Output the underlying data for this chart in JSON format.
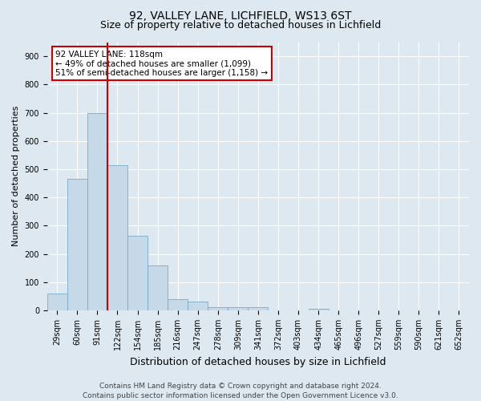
{
  "title1": "92, VALLEY LANE, LICHFIELD, WS13 6ST",
  "title2": "Size of property relative to detached houses in Lichfield",
  "xlabel": "Distribution of detached houses by size in Lichfield",
  "ylabel": "Number of detached properties",
  "categories": [
    "29sqm",
    "60sqm",
    "91sqm",
    "122sqm",
    "154sqm",
    "185sqm",
    "216sqm",
    "247sqm",
    "278sqm",
    "309sqm",
    "341sqm",
    "372sqm",
    "403sqm",
    "434sqm",
    "465sqm",
    "496sqm",
    "527sqm",
    "559sqm",
    "590sqm",
    "621sqm",
    "652sqm"
  ],
  "values": [
    60,
    465,
    700,
    515,
    265,
    160,
    40,
    30,
    12,
    10,
    10,
    0,
    0,
    5,
    0,
    0,
    0,
    0,
    0,
    0,
    0
  ],
  "bar_color": "#c5d9e8",
  "bar_edge_color": "#7aaac8",
  "vline_color": "#cc0000",
  "vline_x_index": 3,
  "annotation_text": "92 VALLEY LANE: 118sqm\n← 49% of detached houses are smaller (1,099)\n51% of semi-detached houses are larger (1,158) →",
  "annotation_box_facecolor": "#ffffff",
  "annotation_box_edgecolor": "#cc0000",
  "ylim": [
    0,
    950
  ],
  "yticks": [
    0,
    100,
    200,
    300,
    400,
    500,
    600,
    700,
    800,
    900
  ],
  "bg_color": "#dde8f0",
  "plot_bg_color": "#dde8f0",
  "grid_color": "#ffffff",
  "footer": "Contains HM Land Registry data © Crown copyright and database right 2024.\nContains public sector information licensed under the Open Government Licence v3.0.",
  "title1_fontsize": 10,
  "title2_fontsize": 9,
  "xlabel_fontsize": 9,
  "ylabel_fontsize": 8,
  "tick_fontsize": 7,
  "footer_fontsize": 6.5,
  "annotation_fontsize": 7.5
}
